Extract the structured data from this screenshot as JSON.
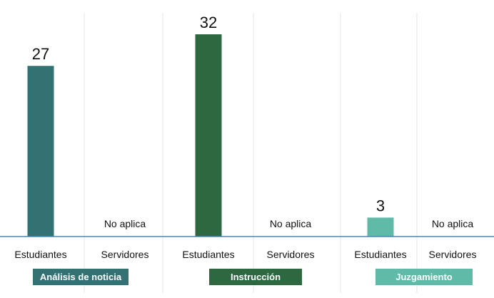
{
  "chart_data": {
    "type": "bar",
    "ylim": [
      0,
      35
    ],
    "groups": [
      {
        "label": "Análisis de noticia",
        "color": "#337272",
        "categories": [
          {
            "label": "Estudiantes",
            "value": 27,
            "value_label": "27"
          },
          {
            "label": "Servidores",
            "value": null,
            "value_label": "No aplica"
          }
        ]
      },
      {
        "label": "Instrucción",
        "color": "#2d6840",
        "categories": [
          {
            "label": "Estudiantes",
            "value": 32,
            "value_label": "32"
          },
          {
            "label": "Servidores",
            "value": null,
            "value_label": "No aplica"
          }
        ]
      },
      {
        "label": "Juzgamiento",
        "color": "#5fbba8",
        "categories": [
          {
            "label": "Estudiantes",
            "value": 3,
            "value_label": "3"
          },
          {
            "label": "Servidores",
            "value": null,
            "value_label": "No aplica"
          }
        ]
      }
    ]
  }
}
